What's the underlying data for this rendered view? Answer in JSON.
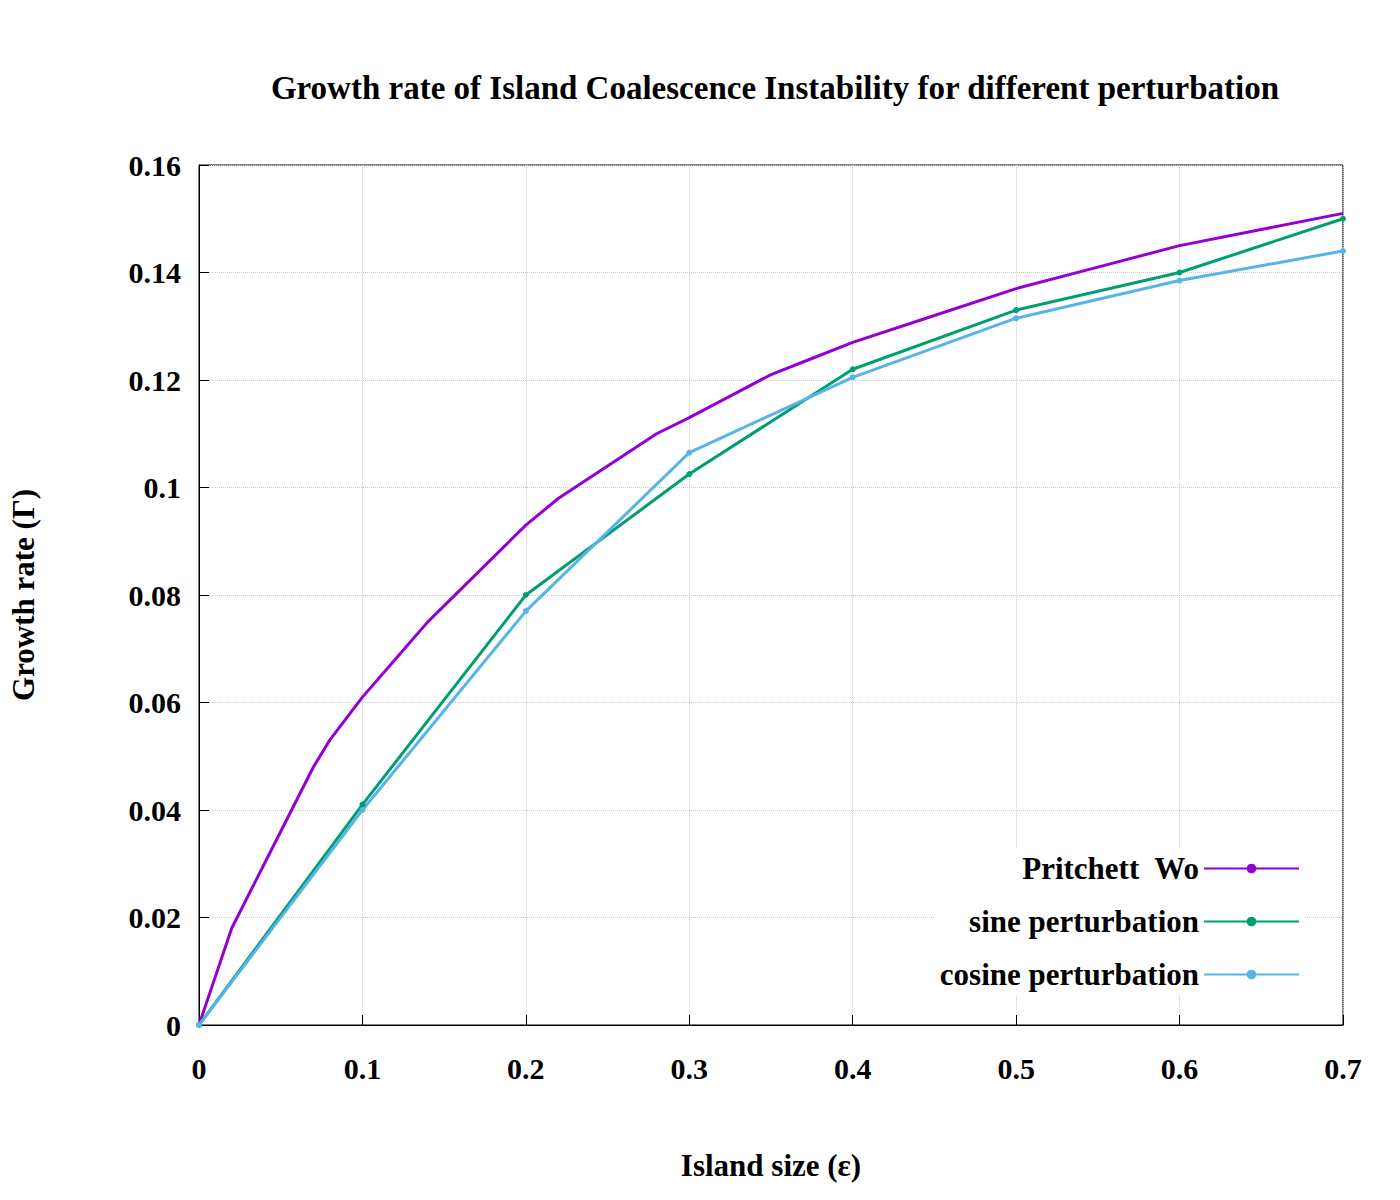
{
  "chart_data": {
    "type": "line",
    "title": "Growth rate of Island Coalescence Instability for different perturbation",
    "x_label": "Island size (ε)",
    "y_label": "Growth rate (Γ)",
    "xlim": [
      0,
      0.7
    ],
    "xticks": [
      0,
      0.1,
      0.2,
      0.3,
      0.4,
      0.5,
      0.6,
      0.7
    ],
    "ylim": [
      0,
      0.16
    ],
    "yticks": [
      0,
      0.02,
      0.04,
      0.06,
      0.08,
      0.1,
      0.12,
      0.14,
      0.16
    ],
    "grid": true,
    "legend": "lower right",
    "series": [
      {
        "name": "Pritchett  Wo",
        "color": "#9400d3",
        "x": [
          0,
          0.01,
          0.02,
          0.03,
          0.04,
          0.05,
          0.06,
          0.07,
          0.08,
          0.09,
          0.1,
          0.12,
          0.14,
          0.16,
          0.18,
          0.2,
          0.22,
          0.24,
          0.26,
          0.28,
          0.3,
          0.325,
          0.35,
          0.375,
          0.4,
          0.45,
          0.5,
          0.55,
          0.6,
          0.65,
          0.7
        ],
        "values": [
          0,
          0.009,
          0.018,
          0.024,
          0.03,
          0.036,
          0.042,
          0.048,
          0.053,
          0.057,
          0.061,
          0.068,
          0.075,
          0.081,
          0.087,
          0.093,
          0.098,
          0.102,
          0.106,
          0.11,
          0.113,
          0.117,
          0.121,
          0.124,
          0.127,
          0.132,
          0.137,
          0.141,
          0.145,
          0.148,
          0.151
        ]
      },
      {
        "name": "sine perturbation",
        "color": "#009e73",
        "marker": "circle",
        "x": [
          0,
          0.1,
          0.2,
          0.3,
          0.4,
          0.5,
          0.6,
          0.7
        ],
        "values": [
          0,
          0.041,
          0.08,
          0.1025,
          0.122,
          0.133,
          0.14,
          0.15
        ]
      },
      {
        "name": "cosine perturbation",
        "color": "#56b4e9",
        "marker": "circle",
        "x": [
          0,
          0.1,
          0.2,
          0.3,
          0.4,
          0.5,
          0.6,
          0.7
        ],
        "values": [
          0,
          0.04,
          0.077,
          0.1065,
          0.1205,
          0.1315,
          0.1385,
          0.144
        ]
      }
    ]
  }
}
